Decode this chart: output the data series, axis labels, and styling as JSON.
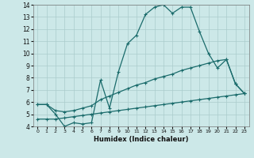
{
  "line1_x": [
    0,
    1,
    2,
    3,
    4,
    5,
    6,
    7,
    8,
    9,
    10,
    11,
    12,
    13,
    14,
    15,
    16,
    17,
    18,
    19,
    20,
    21,
    22,
    23
  ],
  "line1_y": [
    5.8,
    5.8,
    5.0,
    4.0,
    4.3,
    4.2,
    4.3,
    7.8,
    5.5,
    8.5,
    10.8,
    11.5,
    13.2,
    13.8,
    14.0,
    13.3,
    13.8,
    13.8,
    11.8,
    10.0,
    8.8,
    9.5,
    7.5,
    6.7
  ],
  "line2_x": [
    0,
    1,
    2,
    3,
    4,
    5,
    6,
    7,
    8,
    9,
    10,
    11,
    12,
    13,
    14,
    15,
    16,
    17,
    18,
    19,
    20,
    21,
    22,
    23
  ],
  "line2_y": [
    5.8,
    5.8,
    5.3,
    5.2,
    5.3,
    5.5,
    5.7,
    6.2,
    6.5,
    6.8,
    7.1,
    7.4,
    7.6,
    7.9,
    8.1,
    8.3,
    8.6,
    8.8,
    9.0,
    9.2,
    9.4,
    9.5,
    7.5,
    6.7
  ],
  "line3_x": [
    0,
    1,
    2,
    3,
    4,
    5,
    6,
    7,
    8,
    9,
    10,
    11,
    12,
    13,
    14,
    15,
    16,
    17,
    18,
    19,
    20,
    21,
    22,
    23
  ],
  "line3_y": [
    4.6,
    4.6,
    4.6,
    4.7,
    4.8,
    4.9,
    5.0,
    5.1,
    5.2,
    5.3,
    5.4,
    5.5,
    5.6,
    5.7,
    5.8,
    5.9,
    6.0,
    6.1,
    6.2,
    6.3,
    6.4,
    6.5,
    6.6,
    6.7
  ],
  "bg_color": "#cce8e8",
  "line_color": "#1a6b6b",
  "grid_color": "#aacccc",
  "xlim": [
    -0.5,
    23.5
  ],
  "ylim": [
    4,
    14
  ],
  "xlabel": "Humidex (Indice chaleur)",
  "xticks": [
    0,
    1,
    2,
    3,
    4,
    5,
    6,
    7,
    8,
    9,
    10,
    11,
    12,
    13,
    14,
    15,
    16,
    17,
    18,
    19,
    20,
    21,
    22,
    23
  ],
  "yticks": [
    4,
    5,
    6,
    7,
    8,
    9,
    10,
    11,
    12,
    13,
    14
  ]
}
